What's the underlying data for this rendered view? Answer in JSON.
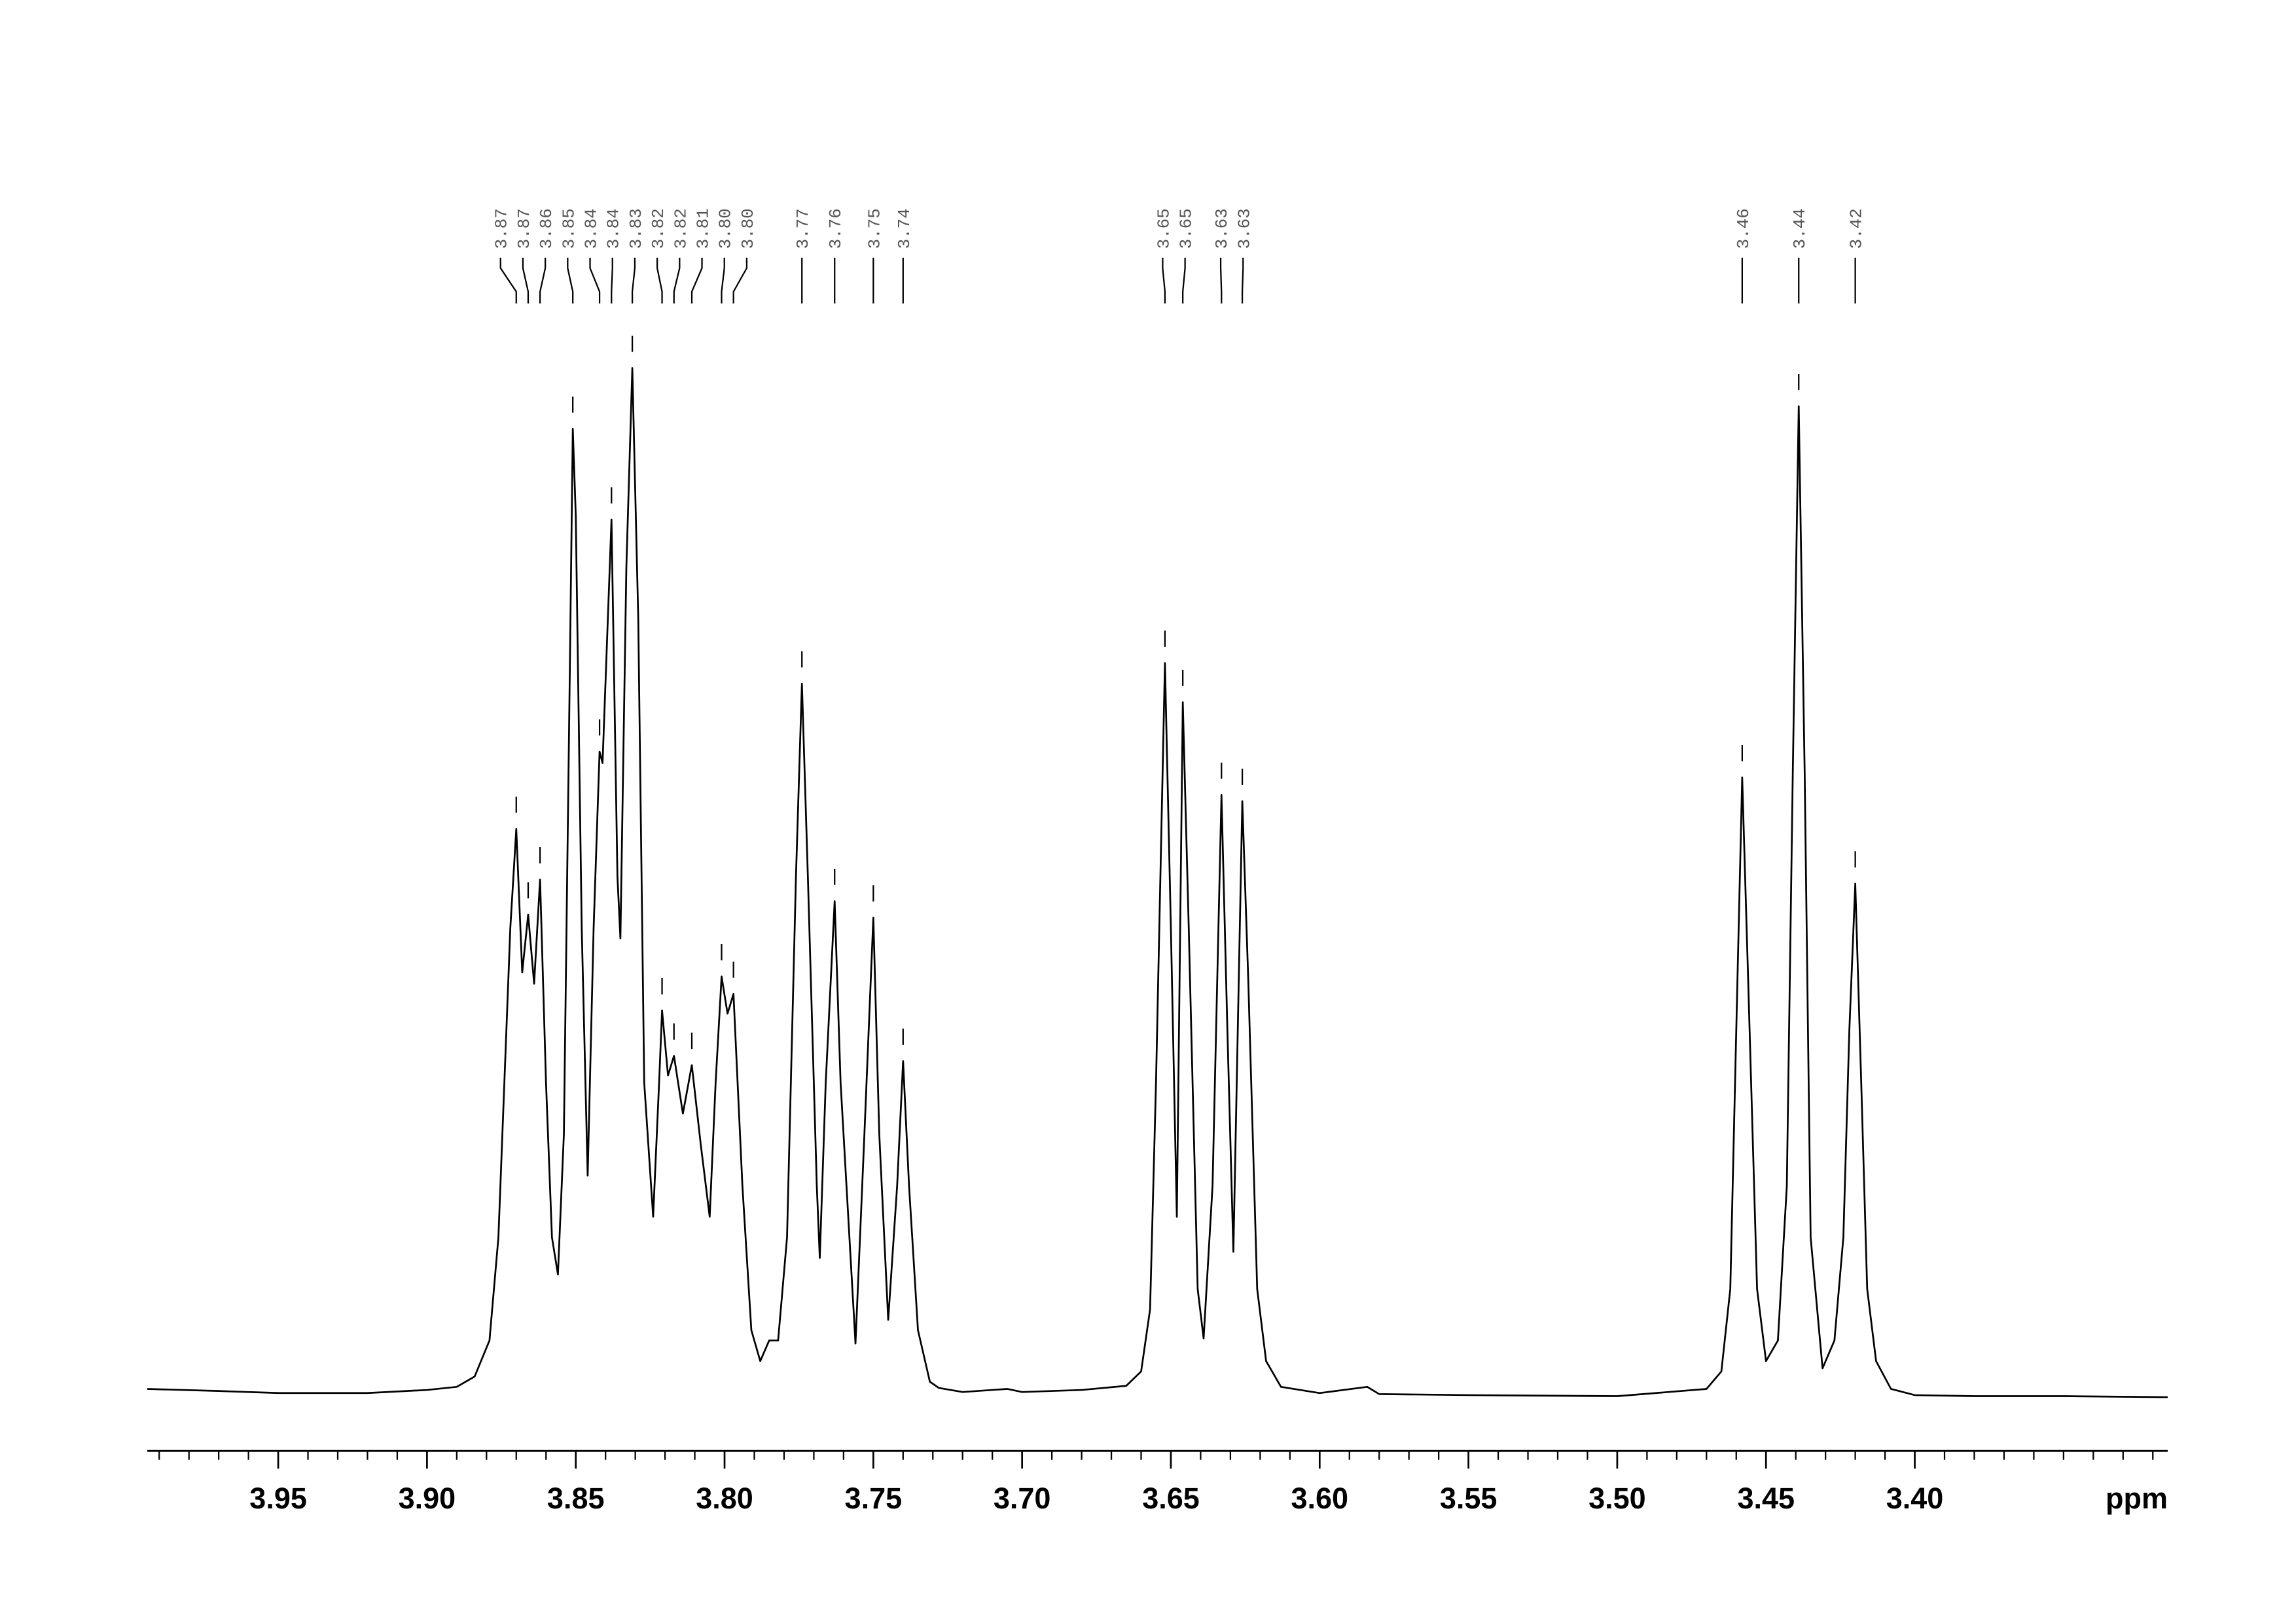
{
  "chart_data": {
    "type": "nmr",
    "x_label": "ppm",
    "xlim": [
      3.994,
      3.315
    ],
    "ylim": [
      -5,
      110
    ],
    "xticks": [
      3.95,
      {
        "value": 3.9,
        "label": "3.90"
      },
      3.85,
      {
        "value": 3.8,
        "label": "3.80"
      },
      3.75,
      {
        "value": 3.7,
        "label": "3.70"
      },
      3.65,
      {
        "value": 3.6,
        "label": "3.60"
      },
      3.55,
      {
        "value": 3.5,
        "label": "3.50"
      },
      3.45,
      {
        "value": 3.4,
        "label": "3.40"
      }
    ],
    "xticks_minor": [
      3.99,
      3.98,
      3.97,
      3.96,
      3.94,
      3.93,
      3.92,
      3.91,
      3.89,
      3.88,
      3.87,
      3.86,
      3.84,
      3.83,
      3.82,
      3.81,
      3.79,
      3.78,
      3.77,
      3.76,
      3.74,
      3.73,
      3.72,
      3.71,
      3.69,
      3.68,
      3.67,
      3.66,
      3.64,
      3.63,
      3.62,
      3.61,
      3.59,
      3.58,
      3.57,
      3.56,
      3.54,
      3.53,
      3.52,
      3.51,
      3.49,
      3.48,
      3.47,
      3.46,
      3.44,
      3.43,
      3.42,
      3.41,
      3.39,
      3.38,
      3.37,
      3.36,
      3.35,
      3.34,
      3.33,
      3.32
    ],
    "series": [
      {
        "color": "#000000",
        "x": [
          3.994,
          3.97,
          3.95,
          3.92,
          3.9,
          3.89,
          3.884,
          3.879,
          3.876,
          3.874,
          3.872,
          3.87,
          3.868,
          3.866,
          3.864,
          3.862,
          3.86,
          3.858,
          3.856,
          3.854,
          3.852,
          3.851,
          3.85,
          3.848,
          3.846,
          3.844,
          3.842,
          3.841,
          3.838,
          3.836,
          3.835,
          3.833,
          3.831,
          3.829,
          3.827,
          3.824,
          3.822,
          3.821,
          3.819,
          3.817,
          3.814,
          3.811,
          3.808,
          3.805,
          3.803,
          3.801,
          3.799,
          3.797,
          3.794,
          3.791,
          3.788,
          3.785,
          3.782,
          3.779,
          3.776,
          3.774,
          3.772,
          3.769,
          3.768,
          3.766,
          3.763,
          3.761,
          3.756,
          3.753,
          3.75,
          3.748,
          3.745,
          3.742,
          3.74,
          3.738,
          3.735,
          3.731,
          3.728,
          3.72,
          3.705,
          3.7,
          3.68,
          3.665,
          3.66,
          3.657,
          3.655,
          3.652,
          3.65,
          3.648,
          3.646,
          3.644,
          3.641,
          3.639,
          3.636,
          3.633,
          3.631,
          3.629,
          3.626,
          3.624,
          3.621,
          3.618,
          3.613,
          3.6,
          3.584,
          3.58,
          3.55,
          3.5,
          3.47,
          3.465,
          3.462,
          3.46,
          3.458,
          3.456,
          3.453,
          3.45,
          3.446,
          3.443,
          3.441,
          3.439,
          3.437,
          3.435,
          3.431,
          3.427,
          3.424,
          3.422,
          3.42,
          3.418,
          3.416,
          3.413,
          3.408,
          3.4,
          3.38,
          3.35,
          3.315
        ],
        "values": [
          0.3,
          0.1,
          -0.1,
          -0.1,
          0.2,
          0.5,
          1.5,
          5,
          15,
          30,
          45,
          54.6,
          40.7,
          46.3,
          39.6,
          49.7,
          30,
          15,
          11.4,
          25,
          70,
          93.4,
          85,
          45,
          21,
          45,
          62.1,
          61,
          84.6,
          50,
          44,
          80,
          99.3,
          75,
          30,
          17,
          30,
          37,
          30.7,
          32.6,
          27,
          31.7,
          24,
          17,
          30,
          40.3,
          36.7,
          38.6,
          20,
          6,
          3,
          5,
          5,
          15,
          50,
          68.7,
          50,
          20,
          13,
          30,
          47.6,
          30,
          4.7,
          25,
          46,
          25,
          7,
          20,
          32.1,
          20,
          6,
          1,
          0.4,
          0,
          0.3,
          0,
          0.2,
          0.6,
          2,
          8,
          30,
          70.7,
          45,
          17,
          66.9,
          45,
          10,
          5.2,
          20,
          57.9,
          35,
          13.6,
          57.3,
          40,
          10,
          3,
          0.5,
          -0.1,
          0.5,
          -0.2,
          -0.3,
          -0.4,
          0.3,
          2,
          10,
          35,
          59.6,
          40,
          10,
          3,
          5,
          20,
          60,
          95.6,
          60,
          15,
          2.3,
          5,
          15,
          35,
          49.3,
          30,
          10,
          3,
          0.3,
          -0.3,
          -0.4,
          -0.4,
          -0.5
        ]
      }
    ],
    "peaks": [
      {
        "label": "3.87",
        "x": 3.87,
        "height": 54.6
      },
      {
        "label": "3.87",
        "x": 3.866,
        "height": 46.3
      },
      {
        "label": "3.86",
        "x": 3.862,
        "height": 49.7
      },
      {
        "label": "3.85",
        "x": 3.851,
        "height": 93.4
      },
      {
        "label": "3.84",
        "x": 3.842,
        "height": 62.1
      },
      {
        "label": "3.84",
        "x": 3.838,
        "height": 84.6
      },
      {
        "label": "3.83",
        "x": 3.831,
        "height": 99.3
      },
      {
        "label": "3.82",
        "x": 3.821,
        "height": 37
      },
      {
        "label": "3.82",
        "x": 3.817,
        "height": 32.6
      },
      {
        "label": "3.81",
        "x": 3.811,
        "height": 31.7
      },
      {
        "label": "3.80",
        "x": 3.801,
        "height": 40.3
      },
      {
        "label": "3.80",
        "x": 3.797,
        "height": 38.6
      },
      {
        "label": "3.77",
        "x": 3.774,
        "height": 68.7
      },
      {
        "label": "3.76",
        "x": 3.763,
        "height": 47.6
      },
      {
        "label": "3.75",
        "x": 3.75,
        "height": 46
      },
      {
        "label": "3.74",
        "x": 3.74,
        "height": 32.1
      },
      {
        "label": "3.65",
        "x": 3.652,
        "height": 70.7
      },
      {
        "label": "3.65",
        "x": 3.646,
        "height": 66.9
      },
      {
        "label": "3.63",
        "x": 3.633,
        "height": 57.9
      },
      {
        "label": "3.63",
        "x": 3.626,
        "height": 57.3
      },
      {
        "label": "3.46",
        "x": 3.458,
        "height": 59.6
      },
      {
        "label": "3.44",
        "x": 3.439,
        "height": 95.6
      },
      {
        "label": "3.42",
        "x": 3.42,
        "height": 49.3
      }
    ]
  }
}
